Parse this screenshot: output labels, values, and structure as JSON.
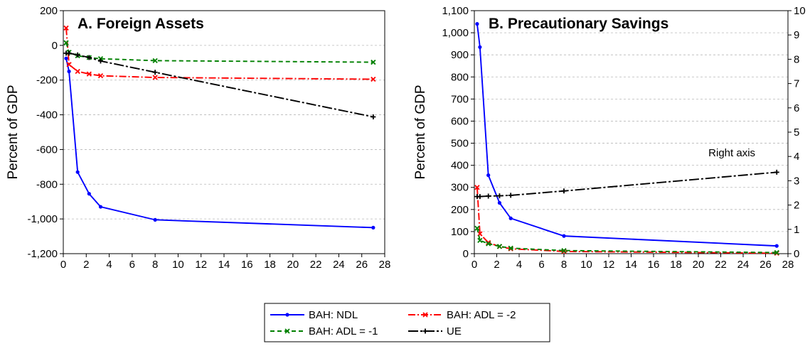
{
  "chart_data": [
    {
      "type": "line",
      "title": "A. Foreign Assets",
      "ylabel": "Percent of GDP",
      "xlabel": "",
      "xlim": [
        0,
        28
      ],
      "ylim": [
        -1200,
        200
      ],
      "x_ticks": [
        "0",
        "2",
        "4",
        "6",
        "8",
        "10",
        "12",
        "14",
        "16",
        "18",
        "20",
        "22",
        "24",
        "26",
        "28"
      ],
      "y_ticks": [
        "200",
        "0",
        "-200",
        "-400",
        "-600",
        "-800",
        "-1,000",
        "-1,200"
      ],
      "grid": "horizontal dashed",
      "series": [
        {
          "name": "BAH: NDL",
          "color": "#0000ff",
          "dash": "",
          "marker": "dot",
          "x": [
            0.25,
            0.5,
            1.25,
            2.25,
            3.25,
            8,
            27
          ],
          "y": [
            -75,
            -150,
            -730,
            -855,
            -930,
            -1005,
            -1050
          ]
        },
        {
          "name": "BAH: ADL = -2",
          "color": "#ff0000",
          "dash": "10,3,2,3",
          "marker": "x",
          "x": [
            0.25,
            0.5,
            1.25,
            2.25,
            3.25,
            8,
            27
          ],
          "y": [
            100,
            -110,
            -150,
            -165,
            -175,
            -185,
            -195
          ]
        },
        {
          "name": "BAH: ADL = -1",
          "color": "#008000",
          "dash": "6,4",
          "marker": "x",
          "x": [
            0.25,
            0.5,
            1.25,
            2.25,
            3.25,
            8,
            27
          ],
          "y": [
            15,
            -40,
            -60,
            -70,
            -77,
            -88,
            -97
          ]
        },
        {
          "name": "UE",
          "color": "#000000",
          "dash": "14,3,3,3",
          "marker": "plus",
          "x": [
            0.25,
            0.5,
            1.25,
            2.25,
            3.25,
            8,
            27
          ],
          "y": [
            -45,
            -45,
            -55,
            -70,
            -90,
            -155,
            -412
          ]
        }
      ]
    },
    {
      "type": "line",
      "title": "B. Precautionary Savings",
      "ylabel": "Percent of GDP",
      "xlabel": "",
      "xlim": [
        0,
        28
      ],
      "ylim": [
        0,
        1100
      ],
      "y2lim": [
        0,
        10
      ],
      "x_ticks": [
        "0",
        "2",
        "4",
        "6",
        "8",
        "10",
        "12",
        "14",
        "16",
        "18",
        "20",
        "22",
        "24",
        "26",
        "28"
      ],
      "y_ticks": [
        "0",
        "100",
        "200",
        "300",
        "400",
        "500",
        "600",
        "700",
        "800",
        "900",
        "1,000",
        "1,100"
      ],
      "y2_ticks": [
        "0",
        "1",
        "2",
        "3",
        "4",
        "5",
        "6",
        "7",
        "8",
        "9",
        "10"
      ],
      "annotation": "Right axis",
      "grid": "horizontal dashed",
      "series": [
        {
          "name": "BAH: NDL",
          "color": "#0000ff",
          "dash": "",
          "marker": "dot",
          "axis": "left",
          "x": [
            0.25,
            0.5,
            1.25,
            2.25,
            3.25,
            8,
            27
          ],
          "y": [
            1040,
            935,
            355,
            230,
            160,
            80,
            35
          ]
        },
        {
          "name": "BAH: ADL = -2",
          "color": "#ff0000",
          "dash": "10,3,2,3",
          "marker": "x",
          "axis": "left",
          "x": [
            0.25,
            0.5,
            1.25,
            2.25,
            3.25,
            8,
            27
          ],
          "y": [
            300,
            90,
            50,
            32,
            22,
            10,
            2
          ]
        },
        {
          "name": "BAH: ADL = -1",
          "color": "#008000",
          "dash": "6,4",
          "marker": "x",
          "axis": "left",
          "x": [
            0.25,
            0.5,
            1.25,
            2.25,
            3.25,
            8,
            27
          ],
          "y": [
            115,
            60,
            45,
            33,
            25,
            14,
            5
          ]
        },
        {
          "name": "UE",
          "color": "#000000",
          "dash": "14,3,3,3",
          "marker": "plus",
          "axis": "right",
          "x": [
            0.25,
            0.5,
            1.25,
            2.25,
            3.25,
            8,
            27
          ],
          "y": [
            2.35,
            2.35,
            2.37,
            2.38,
            2.4,
            2.58,
            3.35
          ]
        }
      ]
    }
  ],
  "legend": {
    "placement": "bottom-center",
    "items": [
      {
        "label": "BAH: NDL",
        "color": "#0000ff",
        "dash": "",
        "marker": "dot"
      },
      {
        "label": "BAH: ADL = -2",
        "color": "#ff0000",
        "dash": "10,3,2,3",
        "marker": "x"
      },
      {
        "label": "BAH: ADL = -1",
        "color": "#008000",
        "dash": "6,4",
        "marker": "x"
      },
      {
        "label": "UE",
        "color": "#000000",
        "dash": "14,3,3,3",
        "marker": "plus"
      }
    ]
  }
}
